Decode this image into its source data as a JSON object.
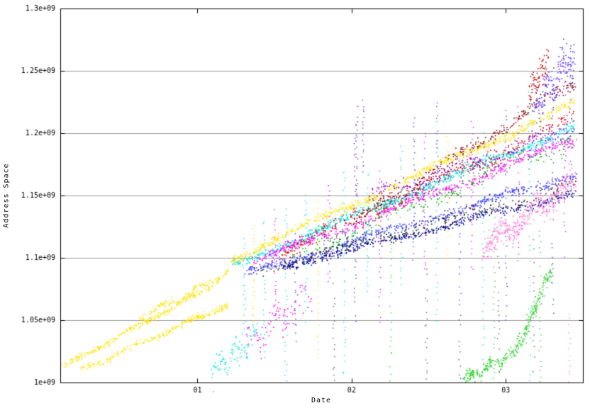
{
  "chart_data": {
    "type": "scatter",
    "title": "",
    "xlabel": "Date",
    "ylabel": "Address Space",
    "xlim": [
      0.11,
      3.5
    ],
    "ylim": [
      1000000000.0,
      1300000000.0
    ],
    "background": "#ffffff",
    "axis_color": "#000000",
    "grid": {
      "horizontal": true,
      "vertical": false,
      "color": "#9a9a9a"
    },
    "x_ticks": [
      {
        "value": 1,
        "label": "01"
      },
      {
        "value": 2,
        "label": "02"
      },
      {
        "value": 3,
        "label": "03"
      }
    ],
    "y_ticks": [
      {
        "value": 1000000000.0,
        "label": "1e+09"
      },
      {
        "value": 1050000000.0,
        "label": "1.05e+09"
      },
      {
        "value": 1100000000.0,
        "label": "1.1e+09"
      },
      {
        "value": 1150000000.0,
        "label": "1.15e+09"
      },
      {
        "value": 1200000000.0,
        "label": "1.2e+09"
      },
      {
        "value": 1250000000.0,
        "label": "1.25e+09"
      },
      {
        "value": 1300000000.0,
        "label": "1.3e+09"
      }
    ],
    "bands": [
      {
        "name": "yellow-lower-1",
        "color": "#ffe400",
        "x": [
          0.125,
          1.08
        ],
        "y": [
          1013000000.0,
          1077000000.0
        ],
        "spread": 1200000.0,
        "n": 260
      },
      {
        "name": "yellow-lower-2",
        "color": "#ffe400",
        "x": [
          0.24,
          1.19
        ],
        "y": [
          1010000000.0,
          1063000000.0
        ],
        "spread": 1200000.0,
        "n": 240
      },
      {
        "name": "yellow-lower-3",
        "color": "#ffe400",
        "x": [
          0.62,
          1.2
        ],
        "y": [
          1052000000.0,
          1088000000.0
        ],
        "spread": 1500000.0,
        "n": 130
      },
      {
        "name": "cyan-low-scatter",
        "color": "#00e5e5",
        "x": [
          1.08,
          1.4
        ],
        "y": [
          1006000000.0,
          1042000000.0
        ],
        "spread": 6000000.0,
        "n": 90
      },
      {
        "name": "magenta-low-scatter",
        "color": "#ff00ff",
        "x": [
          1.3,
          1.75
        ],
        "y": [
          1030000000.0,
          1075000000.0
        ],
        "spread": 7000000.0,
        "n": 80
      },
      {
        "name": "main-cyan",
        "color": "#00e5e5",
        "x": [
          1.2,
          3.45
        ],
        "y": [
          1093000000.0,
          1206000000.0
        ],
        "spread": 1800000.0,
        "n": 700
      },
      {
        "name": "main-yellow",
        "color": "#ffe400",
        "x": [
          1.22,
          3.45
        ],
        "y": [
          1099000000.0,
          1224000000.0
        ],
        "spread": 1800000.0,
        "n": 650
      },
      {
        "name": "main-magenta",
        "color": "#ff00ff",
        "x": [
          1.35,
          3.45
        ],
        "y": [
          1096000000.0,
          1195000000.0
        ],
        "spread": 2200000.0,
        "n": 550
      },
      {
        "name": "main-blue",
        "color": "#3333ff",
        "x": [
          1.3,
          3.45
        ],
        "y": [
          1087000000.0,
          1167000000.0
        ],
        "spread": 1800000.0,
        "n": 500
      },
      {
        "name": "main-navy",
        "color": "#000090",
        "x": [
          1.55,
          3.45
        ],
        "y": [
          1093000000.0,
          1152000000.0
        ],
        "spread": 1500000.0,
        "n": 420
      },
      {
        "name": "main-red",
        "color": "#e00000",
        "x": [
          1.55,
          3.45
        ],
        "y": [
          1106000000.0,
          1212000000.0
        ],
        "spread": 3000000.0,
        "n": 340
      },
      {
        "name": "main-darkred",
        "color": "#8b0000",
        "x": [
          2.0,
          3.45
        ],
        "y": [
          1128000000.0,
          1242000000.0
        ],
        "spread": 2500000.0,
        "n": 260
      },
      {
        "name": "main-green",
        "color": "#00b000",
        "x": [
          1.6,
          3.45
        ],
        "y": [
          1100000000.0,
          1198000000.0
        ],
        "spread": 4000000.0,
        "n": 220
      },
      {
        "name": "main-black",
        "color": "#1a1a1a",
        "x": [
          1.4,
          3.45
        ],
        "y": [
          1091000000.0,
          1158000000.0
        ],
        "spread": 2500000.0,
        "n": 260
      },
      {
        "name": "pink-cloud",
        "color": "#ff7ad9",
        "x": [
          2.85,
          3.45
        ],
        "y": [
          1108000000.0,
          1162000000.0
        ],
        "spread": 5000000.0,
        "n": 380
      },
      {
        "name": "purple-band",
        "color": "#8800cc",
        "x": [
          2.1,
          3.45
        ],
        "y": [
          1148000000.0,
          1204000000.0
        ],
        "spread": 3500000.0,
        "n": 220
      },
      {
        "name": "violet-top-spike",
        "color": "#5533ff",
        "x": [
          3.18,
          3.44
        ],
        "y": [
          1218000000.0,
          1266000000.0
        ],
        "spread": 8000000.0,
        "n": 160
      },
      {
        "name": "red-top-cluster",
        "color": "#cc0000",
        "x": [
          3.15,
          3.27
        ],
        "y": [
          1236000000.0,
          1258000000.0
        ],
        "spread": 5000000.0,
        "n": 70
      },
      {
        "name": "green-floor-1",
        "color": "#2fd32f",
        "x": [
          2.72,
          3.06
        ],
        "y": [
          1002000000.0,
          1024000000.0
        ],
        "spread": 2500000.0,
        "n": 160
      },
      {
        "name": "green-floor-2",
        "color": "#2fd32f",
        "x": [
          3.06,
          3.3
        ],
        "y": [
          1024000000.0,
          1094000000.0
        ],
        "spread": 3000000.0,
        "n": 160
      }
    ],
    "noise_columns": [
      {
        "x": 1.3,
        "y_min": 1045000000.0,
        "y_max": 1115000000.0,
        "n": 25,
        "color": "#00e5e5"
      },
      {
        "x": 1.36,
        "y_min": 1050000000.0,
        "y_max": 1125000000.0,
        "n": 25,
        "color": "#ffe400"
      },
      {
        "x": 1.43,
        "y_min": 1020000000.0,
        "y_max": 1130000000.0,
        "n": 30,
        "color": "#00e5e5"
      },
      {
        "x": 1.5,
        "y_min": 1050000000.0,
        "y_max": 1140000000.0,
        "n": 28,
        "color": "#ff00ff"
      },
      {
        "x": 1.57,
        "y_min": 1002000000.0,
        "y_max": 1140000000.0,
        "n": 35,
        "color": "#00e5e5"
      },
      {
        "x": 1.63,
        "y_min": 1030000000.0,
        "y_max": 1120000000.0,
        "n": 25,
        "color": "#3333ff"
      },
      {
        "x": 1.7,
        "y_min": 1050000000.0,
        "y_max": 1150000000.0,
        "n": 30,
        "color": "#00e5e5"
      },
      {
        "x": 1.78,
        "y_min": 1020000000.0,
        "y_max": 1145000000.0,
        "n": 35,
        "color": "#ffe400"
      },
      {
        "x": 1.85,
        "y_min": 1080000000.0,
        "y_max": 1160000000.0,
        "n": 25,
        "color": "#ff00ff"
      },
      {
        "x": 1.88,
        "y_min": 1002000000.0,
        "y_max": 1080000000.0,
        "n": 20,
        "color": "#555555"
      },
      {
        "x": 1.95,
        "y_min": 1002000000.0,
        "y_max": 1170000000.0,
        "n": 40,
        "color": "#00e5e5"
      },
      {
        "x": 2.02,
        "y_min": 1050000000.0,
        "y_max": 1205000000.0,
        "n": 35,
        "color": "#3333ff"
      },
      {
        "x": 2.03,
        "y_min": 1150000000.0,
        "y_max": 1220000000.0,
        "n": 25,
        "color": "#8800cc"
      },
      {
        "x": 2.07,
        "y_min": 1170000000.0,
        "y_max": 1225000000.0,
        "n": 20,
        "color": "#5533ff"
      },
      {
        "x": 2.1,
        "y_min": 1070000000.0,
        "y_max": 1170000000.0,
        "n": 28,
        "color": "#00e5e5"
      },
      {
        "x": 2.18,
        "y_min": 1050000000.0,
        "y_max": 1170000000.0,
        "n": 28,
        "color": "#ff00ff"
      },
      {
        "x": 2.25,
        "y_min": 1002000000.0,
        "y_max": 1120000000.0,
        "n": 30,
        "color": "#2fd32f"
      },
      {
        "x": 2.32,
        "y_min": 1080000000.0,
        "y_max": 1190000000.0,
        "n": 28,
        "color": "#00e5e5"
      },
      {
        "x": 2.4,
        "y_min": 1100000000.0,
        "y_max": 1215000000.0,
        "n": 32,
        "color": "#3333ff"
      },
      {
        "x": 2.47,
        "y_min": 1090000000.0,
        "y_max": 1200000000.0,
        "n": 28,
        "color": "#ff00ff"
      },
      {
        "x": 2.48,
        "y_min": 1002000000.0,
        "y_max": 1090000000.0,
        "n": 22,
        "color": "#555555"
      },
      {
        "x": 2.55,
        "y_min": 1050000000.0,
        "y_max": 1210000000.0,
        "n": 32,
        "color": "#00e5e5"
      },
      {
        "x": 2.55,
        "y_min": 1170000000.0,
        "y_max": 1225000000.0,
        "n": 18,
        "color": "#5533ff"
      },
      {
        "x": 2.62,
        "y_min": 1100000000.0,
        "y_max": 1200000000.0,
        "n": 26,
        "color": "#ffe400"
      },
      {
        "x": 2.7,
        "y_min": 1002000000.0,
        "y_max": 1180000000.0,
        "n": 34,
        "color": "#3333ff"
      },
      {
        "x": 2.78,
        "y_min": 1090000000.0,
        "y_max": 1210000000.0,
        "n": 28,
        "color": "#ff00ff"
      },
      {
        "x": 2.85,
        "y_min": 1002000000.0,
        "y_max": 1200000000.0,
        "n": 36,
        "color": "#00e5e5"
      },
      {
        "x": 2.92,
        "y_min": 1002000000.0,
        "y_max": 1150000000.0,
        "n": 30,
        "color": "#2fd32f"
      },
      {
        "x": 2.95,
        "y_min": 1002000000.0,
        "y_max": 1100000000.0,
        "n": 22,
        "color": "#555555"
      },
      {
        "x": 3.0,
        "y_min": 1050000000.0,
        "y_max": 1220000000.0,
        "n": 34,
        "color": "#3333ff"
      },
      {
        "x": 3.08,
        "y_min": 1100000000.0,
        "y_max": 1220000000.0,
        "n": 30,
        "color": "#ff00ff"
      },
      {
        "x": 3.15,
        "y_min": 1002000000.0,
        "y_max": 1240000000.0,
        "n": 38,
        "color": "#00e5e5"
      },
      {
        "x": 3.18,
        "y_min": 1010000000.0,
        "y_max": 1120000000.0,
        "n": 20,
        "color": "#555555"
      },
      {
        "x": 3.22,
        "y_min": 1002000000.0,
        "y_max": 1120000000.0,
        "n": 32,
        "color": "#2fd32f"
      },
      {
        "x": 3.3,
        "y_min": 1050000000.0,
        "y_max": 1250000000.0,
        "n": 36,
        "color": "#3333ff"
      },
      {
        "x": 3.38,
        "y_min": 1100000000.0,
        "y_max": 1260000000.0,
        "n": 32,
        "color": "#ff00ff"
      },
      {
        "x": 3.41,
        "y_min": 1002000000.0,
        "y_max": 1060000000.0,
        "n": 15,
        "color": "#ff7ad9"
      },
      {
        "x": 3.42,
        "y_min": 1150000000.0,
        "y_max": 1270000000.0,
        "n": 30,
        "color": "#5533ff"
      }
    ]
  }
}
